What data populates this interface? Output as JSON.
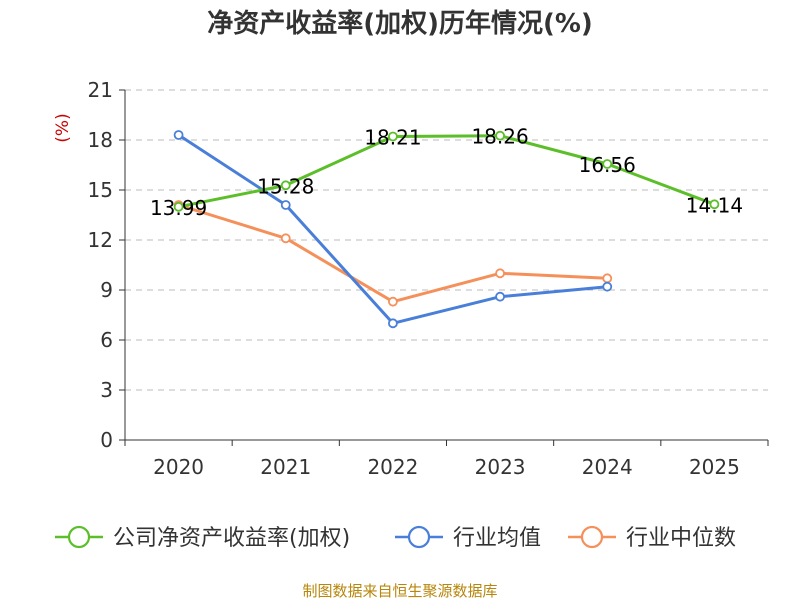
{
  "chart_data": {
    "type": "line",
    "title": "净资产收益率(加权)历年情况(%)",
    "ylabel": "(%)",
    "xlabel": "",
    "categories": [
      "2020",
      "2021",
      "2022",
      "2023",
      "2024",
      "2025"
    ],
    "ylim": [
      0,
      21
    ],
    "yticks": [
      "0",
      "3",
      "6",
      "9",
      "12",
      "15",
      "18",
      "21"
    ],
    "grid": true,
    "legend_position": "bottom",
    "series": [
      {
        "name": "公司净资产收益率(加权)",
        "color": "#5cbf2a",
        "values": [
          13.99,
          15.28,
          18.21,
          18.26,
          16.56,
          14.14
        ],
        "labels": [
          "13.99",
          "15.28",
          "18.21",
          "18.26",
          "16.56",
          "14.14"
        ]
      },
      {
        "name": "行业均值",
        "color": "#4a7fd9",
        "values": [
          18.3,
          14.1,
          7.0,
          8.6,
          9.2,
          null
        ]
      },
      {
        "name": "行业中位数",
        "color": "#f5905a",
        "values": [
          14.1,
          12.1,
          8.3,
          10.0,
          9.7,
          null
        ]
      }
    ]
  },
  "source": {
    "text": "制图数据来自恒生聚源数据库",
    "color": "#b8860b"
  },
  "colors": {
    "axis": "#333333",
    "grid": "#bbbbbb",
    "ylabel": "#cc0000"
  }
}
